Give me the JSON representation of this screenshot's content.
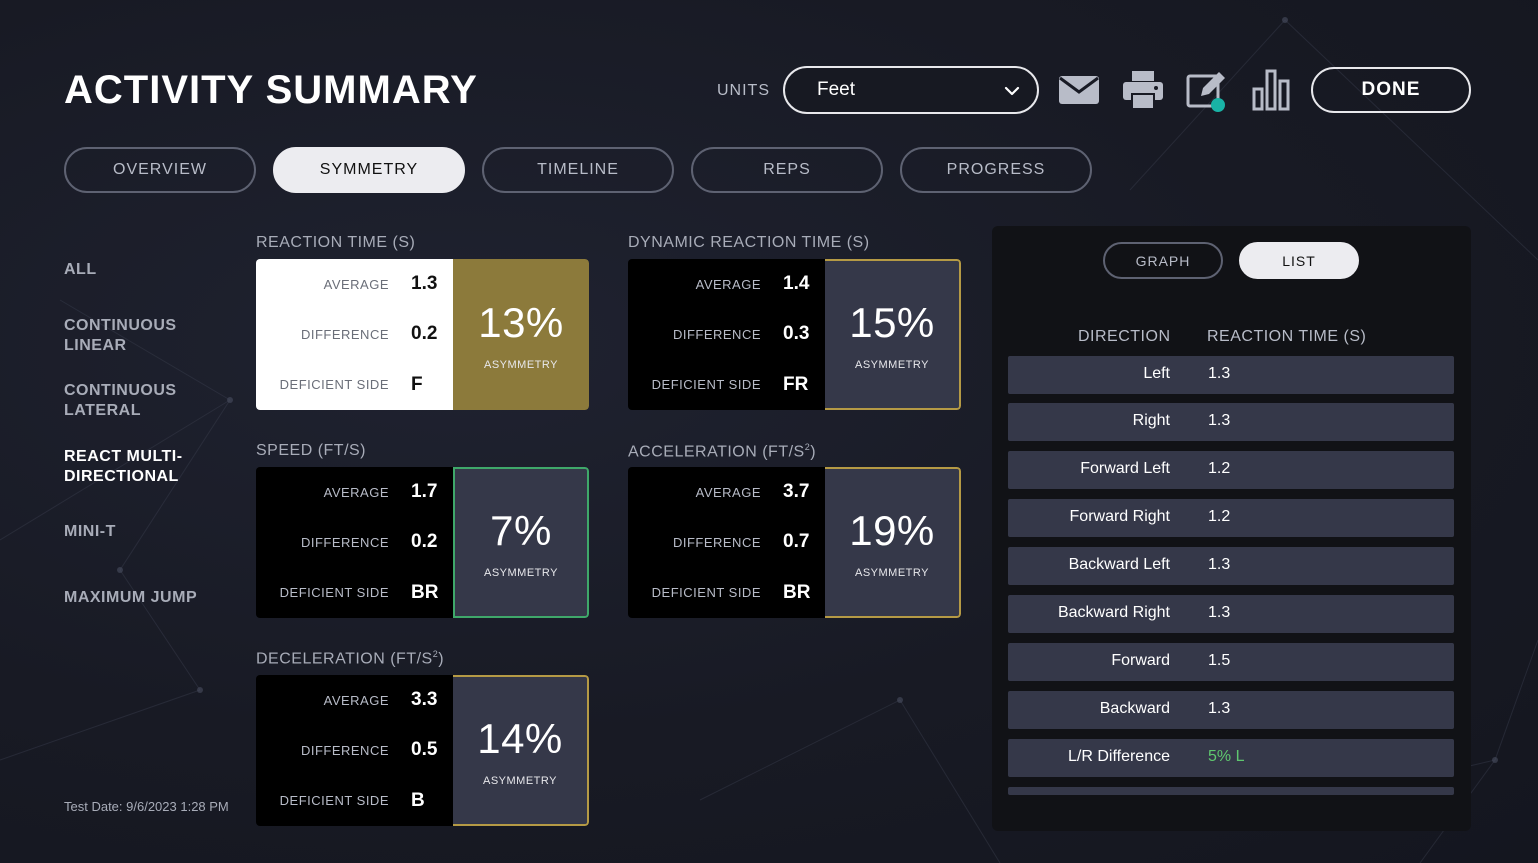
{
  "header": {
    "title": "ACTIVITY SUMMARY",
    "units_label": "UNITS",
    "units_value": "Feet",
    "done_label": "DONE"
  },
  "icons": {
    "email": "email-icon",
    "print": "print-icon",
    "edit": "edit-icon",
    "chart": "bar-chart-icon"
  },
  "tabs": [
    {
      "label": "OVERVIEW"
    },
    {
      "label": "SYMMETRY"
    },
    {
      "label": "TIMELINE"
    },
    {
      "label": "REPS"
    },
    {
      "label": "PROGRESS"
    }
  ],
  "active_tab": "SYMMETRY",
  "sidebar": {
    "items": [
      {
        "label": "ALL"
      },
      {
        "label": "CONTINUOUS LINEAR"
      },
      {
        "label": "CONTINUOUS LATERAL"
      },
      {
        "label": "REACT MULTI-DIRECTIONAL"
      },
      {
        "label": "MINI-T"
      },
      {
        "label": "MAXIMUM JUMP"
      }
    ],
    "active": "REACT MULTI-DIRECTIONAL"
  },
  "test_date": "Test Date: 9/6/2023 1:28 PM",
  "stat_labels": {
    "average": "AVERAGE",
    "difference": "DIFFERENCE",
    "deficient_side": "DEFICIENT SIDE",
    "asymmetry": "ASYMMETRY"
  },
  "metrics": [
    {
      "title": "REACTION TIME (S)",
      "average": "1.3",
      "difference": "0.2",
      "deficient_side": "F",
      "asymmetry": "13%"
    },
    {
      "title": "DYNAMIC REACTION TIME (S)",
      "average": "1.4",
      "difference": "0.3",
      "deficient_side": "FR",
      "asymmetry": "15%"
    },
    {
      "title": "SPEED (FT/S)",
      "average": "1.7",
      "difference": "0.2",
      "deficient_side": "BR",
      "asymmetry": "7%"
    },
    {
      "title": "ACCELERATION (FT/S",
      "title_sup": "2",
      "title_end": ")",
      "average": "3.7",
      "difference": "0.7",
      "deficient_side": "BR",
      "asymmetry": "19%"
    },
    {
      "title": "DECELERATION (FT/S",
      "title_sup": "2",
      "title_end": ")",
      "average": "3.3",
      "difference": "0.5",
      "deficient_side": "B",
      "asymmetry": "14%"
    }
  ],
  "panel": {
    "toggle_graph": "GRAPH",
    "toggle_list": "LIST",
    "active_toggle": "LIST",
    "col_direction": "DIRECTION",
    "col_reaction": "REACTION TIME (S)",
    "rows": [
      {
        "direction": "Left",
        "value": "1.3"
      },
      {
        "direction": "Right",
        "value": "1.3"
      },
      {
        "direction": "Forward Left",
        "value": "1.2"
      },
      {
        "direction": "Forward Right",
        "value": "1.2"
      },
      {
        "direction": "Backward Left",
        "value": "1.3"
      },
      {
        "direction": "Backward Right",
        "value": "1.3"
      },
      {
        "direction": "Forward",
        "value": "1.5"
      },
      {
        "direction": "Backward",
        "value": "1.3"
      },
      {
        "direction": "L/R Difference",
        "value": "5% L"
      }
    ]
  },
  "colors": {
    "gold": "#8c7a3b",
    "gold_border": "#b59a45",
    "green_border": "#3fa86a",
    "accent_teal": "#19b3a6",
    "positive_green": "#5fc76f"
  }
}
